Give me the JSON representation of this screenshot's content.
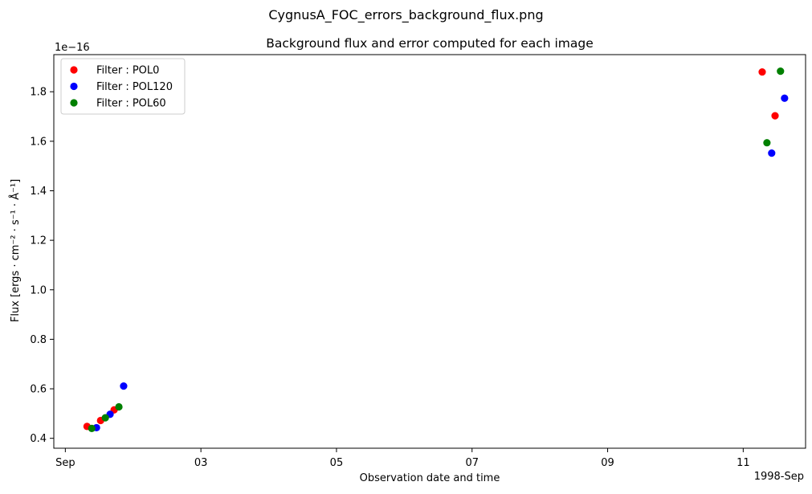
{
  "suptitle": "CygnusA_FOC_errors_background_flux.png",
  "chart_data": {
    "type": "scatter",
    "title": "Background flux and error computed for each image",
    "xlabel": "Observation date and time",
    "ylabel": "Flux [ergs · cm⁻² · s⁻¹ · Å⁻¹]",
    "y_offset_label": "1e−16",
    "x_offset_label": "1998-Sep",
    "x_axis": {
      "min_day": 0.83,
      "max_day": 11.92,
      "ticks": [
        {
          "day": 1,
          "label": "Sep"
        },
        {
          "day": 3,
          "label": "03"
        },
        {
          "day": 5,
          "label": "05"
        },
        {
          "day": 7,
          "label": "07"
        },
        {
          "day": 9,
          "label": "09"
        },
        {
          "day": 11,
          "label": "11"
        }
      ]
    },
    "y_axis": {
      "min": 0.36,
      "max": 1.95,
      "ticks": [
        0.4,
        0.6,
        0.8,
        1.0,
        1.2,
        1.4,
        1.6,
        1.8
      ],
      "tick_labels": [
        "0.4",
        "0.6",
        "0.8",
        "1.0",
        "1.2",
        "1.4",
        "1.6",
        "1.8"
      ]
    },
    "legend_position": "top-left",
    "grid": false,
    "series": [
      {
        "name": "Filter : POL0",
        "color": "#ff0000",
        "points": [
          {
            "x": 1.32,
            "y": 0.448
          },
          {
            "x": 1.52,
            "y": 0.472
          },
          {
            "x": 1.72,
            "y": 0.515
          },
          {
            "x": 11.28,
            "y": 1.88
          },
          {
            "x": 11.47,
            "y": 1.703
          }
        ]
      },
      {
        "name": "Filter : POL120",
        "color": "#0000ff",
        "points": [
          {
            "x": 1.46,
            "y": 0.443
          },
          {
            "x": 1.66,
            "y": 0.497
          },
          {
            "x": 1.86,
            "y": 0.611
          },
          {
            "x": 11.42,
            "y": 1.552
          },
          {
            "x": 11.61,
            "y": 1.774
          }
        ]
      },
      {
        "name": "Filter : POL60",
        "color": "#008000",
        "points": [
          {
            "x": 1.39,
            "y": 0.44
          },
          {
            "x": 1.59,
            "y": 0.483
          },
          {
            "x": 1.79,
            "y": 0.527
          },
          {
            "x": 11.35,
            "y": 1.594
          },
          {
            "x": 11.55,
            "y": 1.883
          }
        ]
      }
    ]
  }
}
